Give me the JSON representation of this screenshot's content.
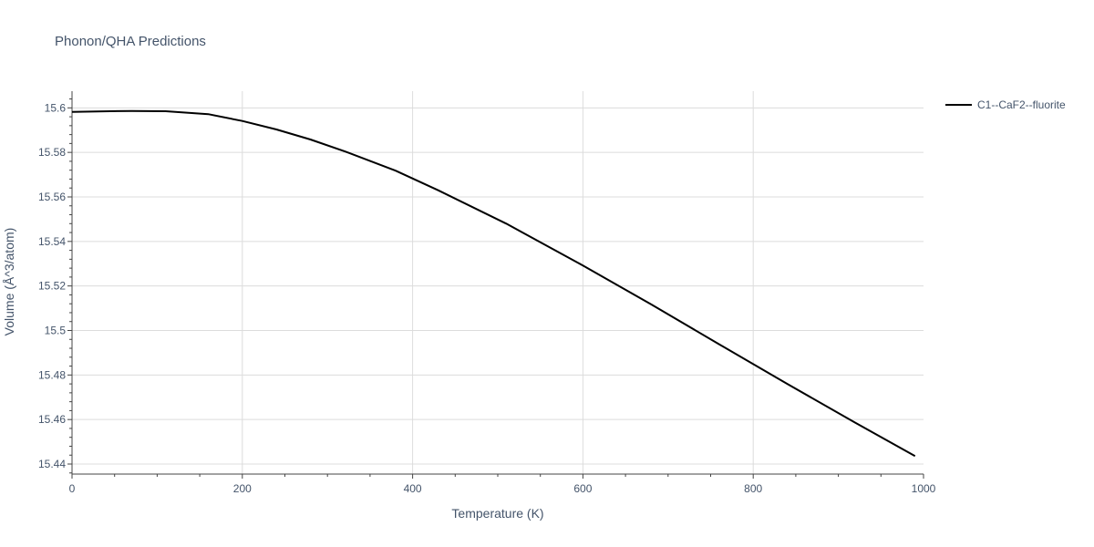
{
  "chart_data": {
    "type": "line",
    "title": "Phonon/QHA Predictions",
    "xlabel": "Temperature (K)",
    "ylabel": "Volume (Å^3/atom)",
    "xlim": [
      0,
      1000
    ],
    "ylim": [
      15.4355,
      15.6075
    ],
    "xticks": [
      0,
      200,
      400,
      600,
      800,
      1000
    ],
    "xtick_labels": [
      "0",
      "200",
      "400",
      "600",
      "800",
      "1000"
    ],
    "yticks": [
      15.44,
      15.46,
      15.48,
      15.5,
      15.52,
      15.54,
      15.56,
      15.58,
      15.6
    ],
    "ytick_labels": [
      "15.44",
      "15.46",
      "15.48",
      "15.5",
      "15.52",
      "15.54",
      "15.56",
      "15.58",
      "15.6"
    ],
    "grid": true,
    "legend_position": "top-right",
    "series": [
      {
        "name": "C1--CaF2--fluorite",
        "color": "#000000",
        "x": [
          0,
          30,
          70,
          110,
          160,
          200,
          240,
          280,
          320,
          380,
          430,
          510,
          600,
          680,
          760,
          840,
          920,
          990
        ],
        "y": [
          15.5982,
          15.5984,
          15.5986,
          15.5985,
          15.5972,
          15.5941,
          15.5903,
          15.5858,
          15.5805,
          15.5718,
          15.563,
          15.548,
          15.5292,
          15.5118,
          15.4938,
          15.476,
          15.4585,
          15.4436
        ]
      }
    ]
  }
}
